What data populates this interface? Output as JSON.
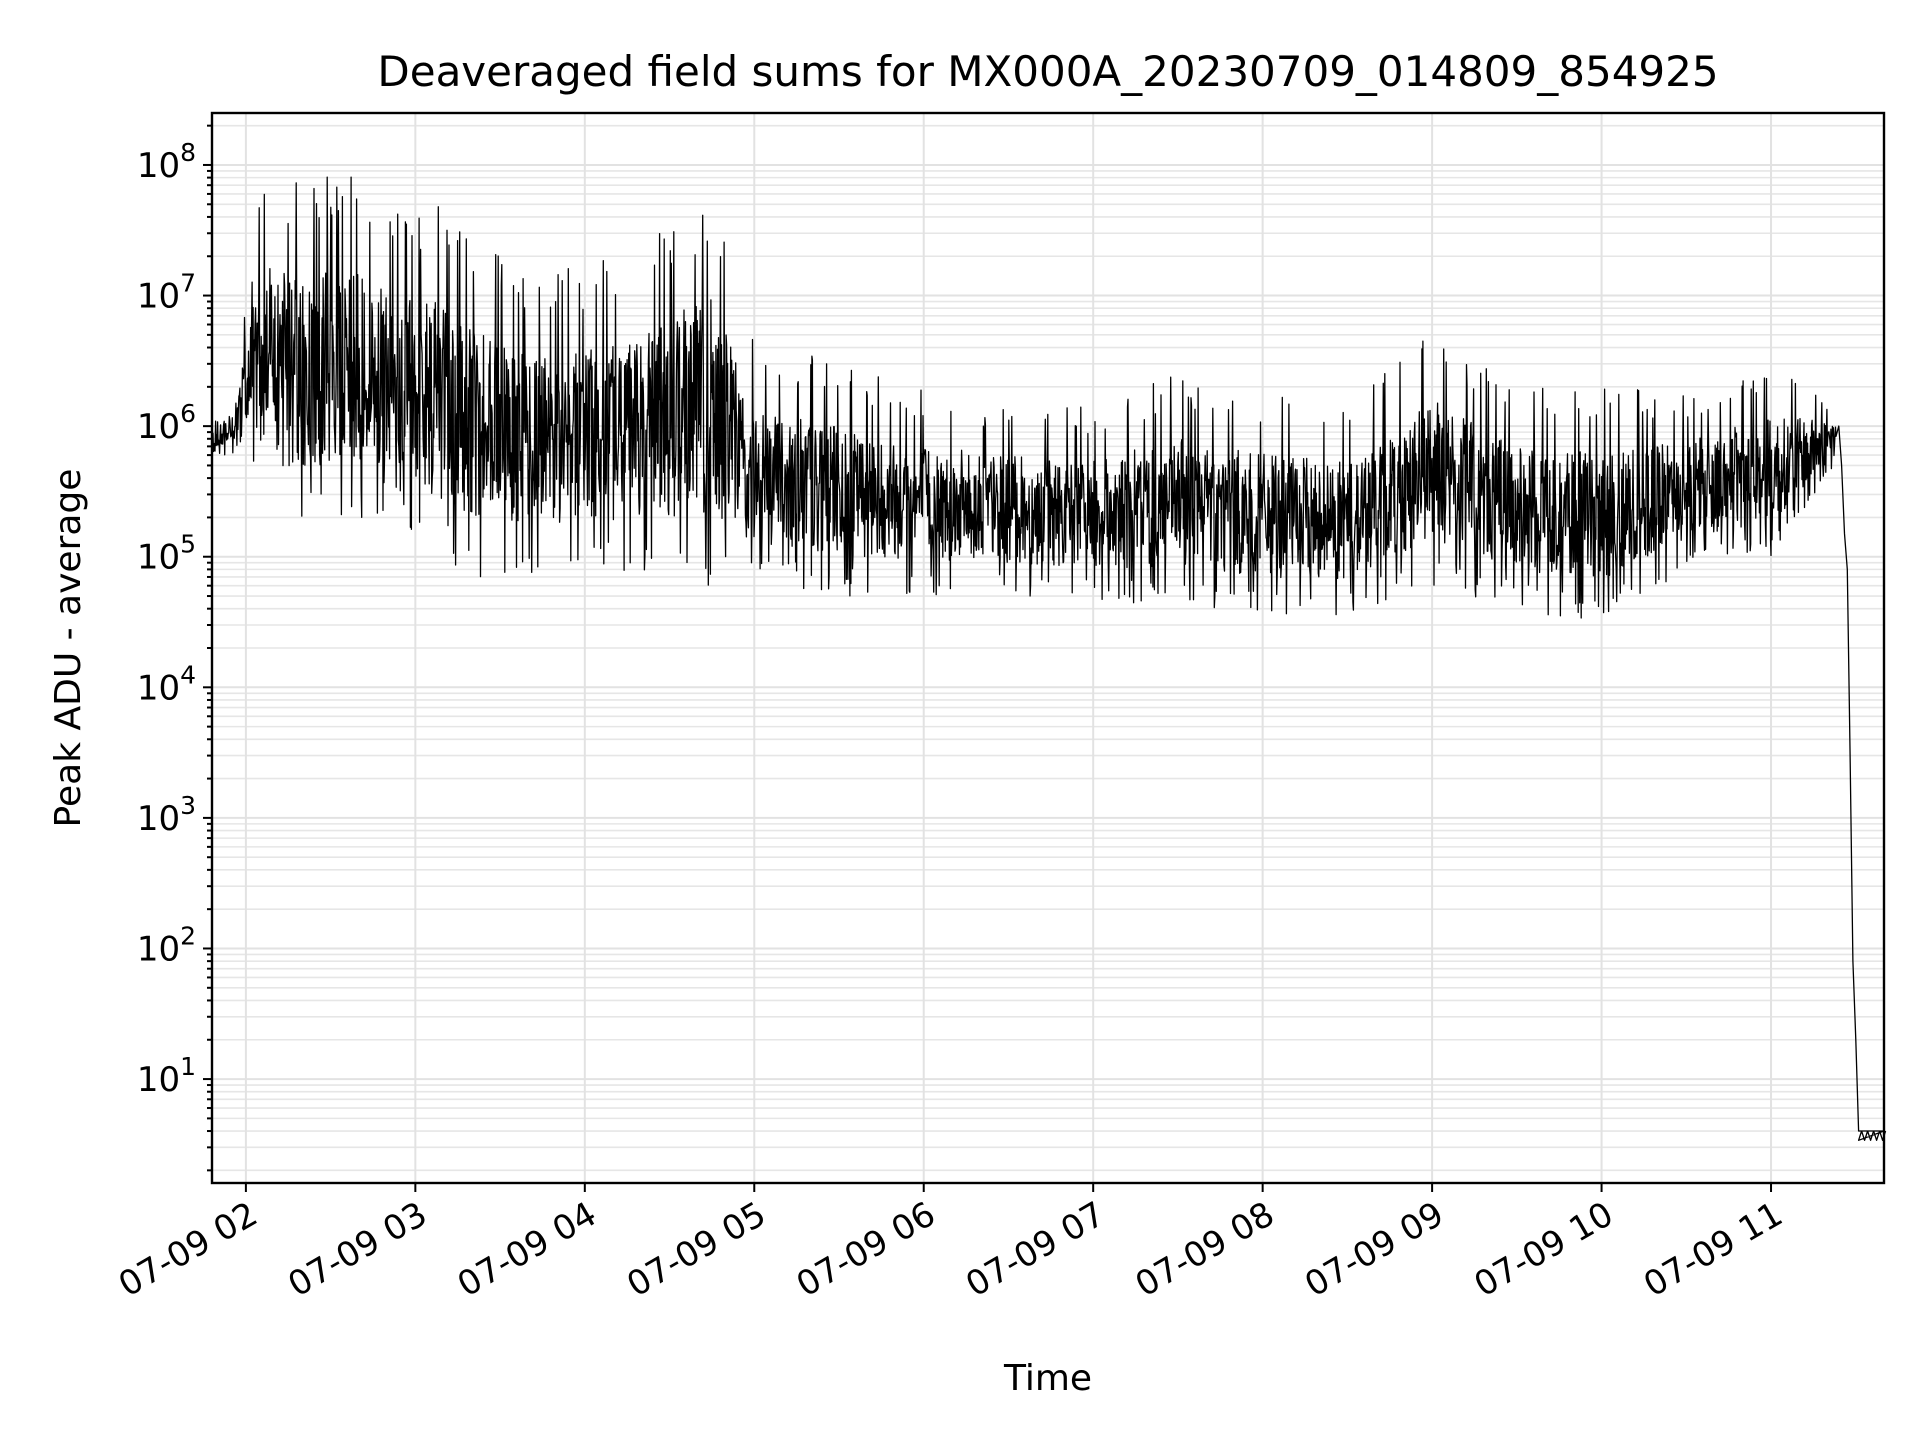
{
  "chart_data": {
    "type": "line",
    "title": "Deaveraged field sums for MX000A_20230709_014809_854925",
    "xlabel": "Time",
    "ylabel": "Peak ADU - average",
    "yscale": "log",
    "ylim": [
      1.6,
      250000000
    ],
    "xlim": [
      "07-09 01:48",
      "07-09 11:40"
    ],
    "grid": true,
    "line_color": "#000000",
    "grid_color": "#e2e2e2",
    "x_ticks": [
      {
        "t": "07-09 02:00",
        "label": "07-09 02"
      },
      {
        "t": "07-09 03:00",
        "label": "07-09 03"
      },
      {
        "t": "07-09 04:00",
        "label": "07-09 04"
      },
      {
        "t": "07-09 05:00",
        "label": "07-09 05"
      },
      {
        "t": "07-09 06:00",
        "label": "07-09 06"
      },
      {
        "t": "07-09 07:00",
        "label": "07-09 07"
      },
      {
        "t": "07-09 08:00",
        "label": "07-09 08"
      },
      {
        "t": "07-09 09:00",
        "label": "07-09 09"
      },
      {
        "t": "07-09 10:00",
        "label": "07-09 10"
      },
      {
        "t": "07-09 11:00",
        "label": "07-09 11"
      }
    ],
    "y_ticks": [
      {
        "value": 10,
        "base": "10",
        "exp": "1"
      },
      {
        "value": 100,
        "base": "10",
        "exp": "2"
      },
      {
        "value": 1000,
        "base": "10",
        "exp": "3"
      },
      {
        "value": 10000,
        "base": "10",
        "exp": "4"
      },
      {
        "value": 100000,
        "base": "10",
        "exp": "5"
      },
      {
        "value": 1000000,
        "base": "10",
        "exp": "6"
      },
      {
        "value": 10000000,
        "base": "10",
        "exp": "7"
      },
      {
        "value": 100000000,
        "base": "10",
        "exp": "8"
      }
    ],
    "envelope": [
      {
        "t": "07-09 01:48",
        "high": 1000000,
        "low": 600000
      },
      {
        "t": "07-09 01:56",
        "high": 1800000,
        "low": 600000
      },
      {
        "t": "07-09 02:00",
        "high": 10000000,
        "low": 700000
      },
      {
        "t": "07-09 02:06",
        "high": 90000000,
        "low": 250000
      },
      {
        "t": "07-09 02:15",
        "high": 80000000,
        "low": 150000
      },
      {
        "t": "07-09 02:35",
        "high": 100000000,
        "low": 180000
      },
      {
        "t": "07-09 02:55",
        "high": 40000000,
        "low": 200000
      },
      {
        "t": "07-09 03:05",
        "high": 60000000,
        "low": 100000
      },
      {
        "t": "07-09 03:20",
        "high": 30000000,
        "low": 70000
      },
      {
        "t": "07-09 03:45",
        "high": 15000000,
        "low": 70000
      },
      {
        "t": "07-09 04:10",
        "high": 20000000,
        "low": 70000
      },
      {
        "t": "07-09 04:45",
        "high": 70000000,
        "low": 60000
      },
      {
        "t": "07-09 05:00",
        "high": 5000000,
        "low": 60000
      },
      {
        "t": "07-09 05:30",
        "high": 3000000,
        "low": 50000
      },
      {
        "t": "07-09 06:00",
        "high": 2000000,
        "low": 50000
      },
      {
        "t": "07-09 06:30",
        "high": 1500000,
        "low": 50000
      },
      {
        "t": "07-09 07:00",
        "high": 1400000,
        "low": 45000
      },
      {
        "t": "07-09 07:30",
        "high": 2500000,
        "low": 40000
      },
      {
        "t": "07-09 08:00",
        "high": 1800000,
        "low": 35000
      },
      {
        "t": "07-09 08:30",
        "high": 1500000,
        "low": 35000
      },
      {
        "t": "07-09 09:00",
        "high": 5500000,
        "low": 60000
      },
      {
        "t": "07-09 09:30",
        "high": 2000000,
        "low": 40000
      },
      {
        "t": "07-09 10:00",
        "high": 2000000,
        "low": 30000
      },
      {
        "t": "07-09 10:30",
        "high": 1800000,
        "low": 80000
      },
      {
        "t": "07-09 11:00",
        "high": 3000000,
        "low": 100000
      },
      {
        "t": "07-09 11:23",
        "high": 1500000,
        "low": 500000
      }
    ],
    "tail": [
      {
        "t": "07-09 11:24",
        "y": 1000000
      },
      {
        "t": "07-09 11:25",
        "y": 500000
      },
      {
        "t": "07-09 11:26",
        "y": 150000
      },
      {
        "t": "07-09 11:27",
        "y": 80000
      },
      {
        "t": "07-09 11:28",
        "y": 3000
      },
      {
        "t": "07-09 11:29",
        "y": 80
      },
      {
        "t": "07-09 11:30",
        "y": 20
      },
      {
        "t": "07-09 11:31",
        "y": 4
      },
      {
        "t": "07-09 11:40",
        "y": 4
      }
    ]
  }
}
